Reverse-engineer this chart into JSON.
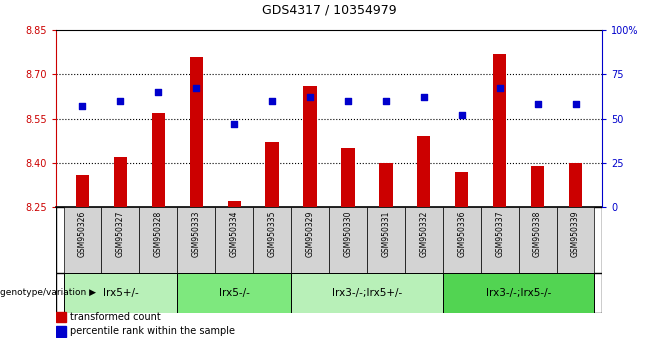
{
  "title": "GDS4317 / 10354979",
  "samples": [
    "GSM950326",
    "GSM950327",
    "GSM950328",
    "GSM950333",
    "GSM950334",
    "GSM950335",
    "GSM950329",
    "GSM950330",
    "GSM950331",
    "GSM950332",
    "GSM950336",
    "GSM950337",
    "GSM950338",
    "GSM950339"
  ],
  "red_values": [
    8.36,
    8.42,
    8.57,
    8.76,
    8.27,
    8.47,
    8.66,
    8.45,
    8.4,
    8.49,
    8.37,
    8.77,
    8.39,
    8.4
  ],
  "blue_values": [
    57,
    60,
    65,
    67,
    47,
    60,
    62,
    60,
    60,
    62,
    52,
    67,
    58,
    58
  ],
  "ylim_left": [
    8.25,
    8.85
  ],
  "ylim_right": [
    0,
    100
  ],
  "yticks_left": [
    8.25,
    8.4,
    8.55,
    8.7,
    8.85
  ],
  "yticks_right": [
    0,
    25,
    50,
    75,
    100
  ],
  "ytick_labels_right": [
    "0",
    "25",
    "50",
    "75",
    "100%"
  ],
  "groups": [
    {
      "label": "lrx5+/-",
      "start": 0,
      "end": 3,
      "color": "#b8f0b8"
    },
    {
      "label": "lrx5-/-",
      "start": 3,
      "end": 6,
      "color": "#7ee87e"
    },
    {
      "label": "lrx3-/-;lrx5+/-",
      "start": 6,
      "end": 10,
      "color": "#b8f0b8"
    },
    {
      "label": "lrx3-/-;lrx5-/-",
      "start": 10,
      "end": 14,
      "color": "#52d452"
    }
  ],
  "bar_color": "#cc0000",
  "dot_color": "#0000cc",
  "bar_width": 0.35,
  "dot_size": 25,
  "legend_red": "transformed count",
  "legend_blue": "percentile rank within the sample",
  "genotype_label": "genotype/variation",
  "sample_bg": "#d3d3d3",
  "left_axis_color": "#cc0000",
  "right_axis_color": "#0000cc"
}
